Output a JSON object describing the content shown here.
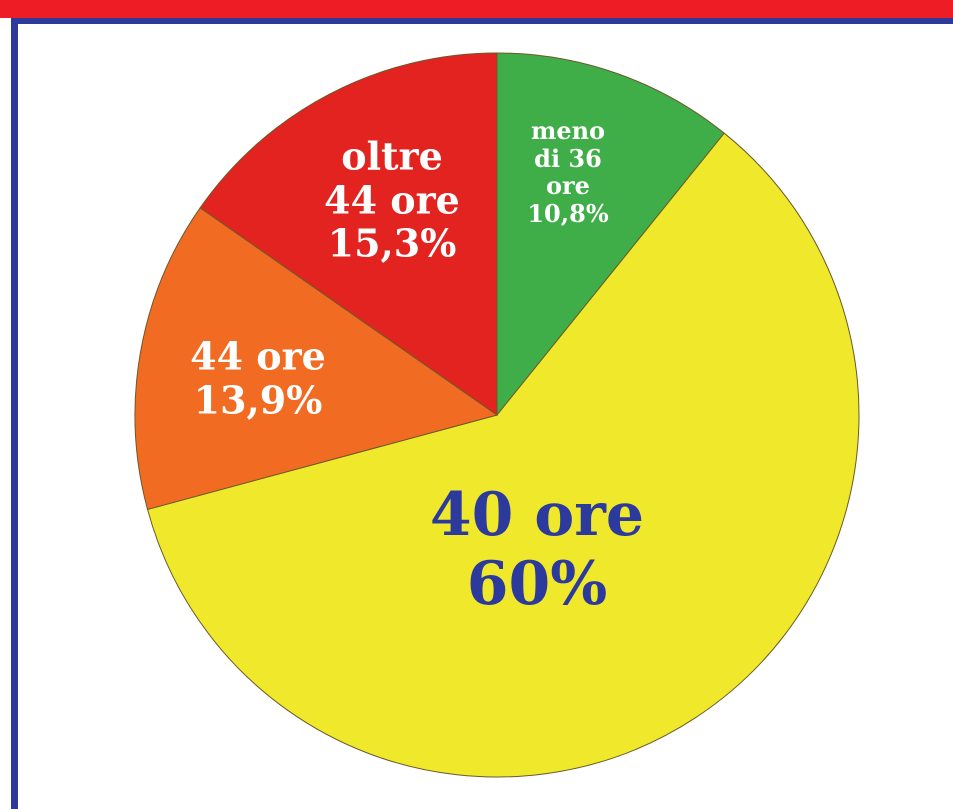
{
  "chart_data": {
    "type": "pie",
    "categories": [
      "meno di 36 ore",
      "40 ore",
      "44 ore",
      "oltre 44 ore"
    ],
    "values": [
      10.8,
      60,
      13.9,
      15.3
    ],
    "value_labels": [
      "10,8%",
      "60%",
      "13,9%",
      "15,3%"
    ],
    "colors": [
      "#3fae49",
      "#f0e92b",
      "#f26b22",
      "#e32320"
    ]
  }
}
